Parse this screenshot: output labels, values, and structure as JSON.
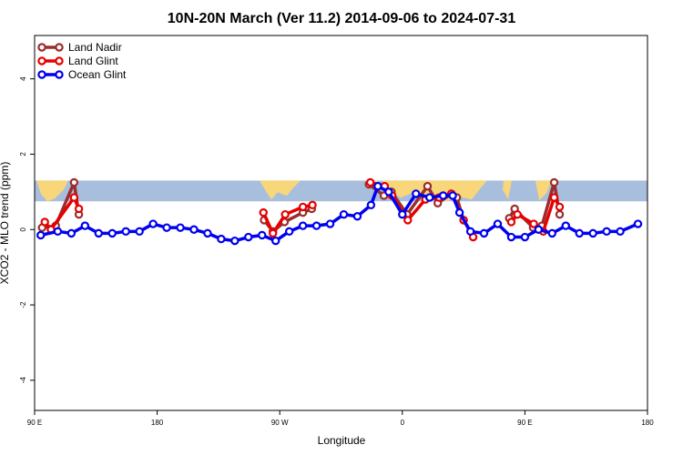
{
  "chart_data": {
    "type": "line",
    "title": "10N-20N March (Ver 11.2)   2014-09-06 to 2024-07-31",
    "xlabel": "Longitude",
    "ylabel": "XCO2 - MLO trend (ppm)",
    "ylim": [
      -4.8,
      5.15
    ],
    "y_ticks": [
      -4,
      -2,
      0,
      2,
      4
    ],
    "x_ticks": [
      {
        "pos": 0,
        "label": "90 E"
      },
      {
        "pos": 90,
        "label": "180"
      },
      {
        "pos": 180,
        "label": "90 W"
      },
      {
        "pos": 270,
        "label": "0"
      },
      {
        "pos": 360,
        "label": "90 E"
      },
      {
        "pos": 450,
        "label": "180"
      }
    ],
    "xlim": [
      0,
      450
    ],
    "map_band": {
      "ymin": 0.75,
      "ymax": 1.3,
      "ocean_color": "#a8bedd",
      "land_color": "#f7d77a"
    },
    "legend_position": "top-left",
    "series": [
      {
        "name": "Land Nadir",
        "color": "#9b2d2d",
        "segments": [
          [
            [
              5.5,
              0.05
            ],
            [
              15.5,
              0.1
            ],
            [
              29,
              1.25
            ],
            [
              32.5,
              0.4
            ]
          ],
          [
            [
              168.5,
              0.25
            ],
            [
              175,
              -0.05
            ],
            [
              183.5,
              0.2
            ],
            [
              197,
              0.45
            ],
            [
              203.5,
              0.55
            ]
          ],
          [
            [
              245.5,
              1.2
            ],
            [
              256.5,
              0.9
            ],
            [
              262,
              1.0
            ],
            [
              273.5,
              0.4
            ],
            [
              288.5,
              1.15
            ],
            [
              296,
              0.7
            ],
            [
              306,
              0.95
            ],
            [
              310,
              0.85
            ],
            [
              315,
              0.25
            ]
          ],
          [
            [
              348.5,
              0.3
            ],
            [
              352.5,
              0.55
            ],
            [
              366,
              0.05
            ],
            [
              372.5,
              0.1
            ],
            [
              381.5,
              1.25
            ],
            [
              385.5,
              0.4
            ]
          ]
        ]
      },
      {
        "name": "Land Glint",
        "color": "#e60000",
        "segments": [
          [
            [
              7.5,
              0.2
            ],
            [
              12,
              0.0
            ],
            [
              29,
              0.85
            ],
            [
              32.5,
              0.55
            ]
          ],
          [
            [
              168,
              0.45
            ],
            [
              175,
              -0.1
            ],
            [
              184,
              0.4
            ],
            [
              197,
              0.6
            ],
            [
              204,
              0.65
            ]
          ],
          [
            [
              246.5,
              1.25
            ],
            [
              257,
              1.15
            ],
            [
              262.5,
              0.9
            ],
            [
              274,
              0.25
            ],
            [
              287,
              0.8
            ],
            [
              297,
              0.85
            ],
            [
              306,
              0.95
            ],
            [
              315,
              0.25
            ],
            [
              322,
              -0.2
            ]
          ],
          [
            [
              350,
              0.2
            ],
            [
              354.5,
              0.4
            ],
            [
              366.5,
              0.15
            ],
            [
              373.5,
              -0.05
            ],
            [
              381.5,
              0.85
            ],
            [
              385.5,
              0.6
            ]
          ]
        ]
      },
      {
        "name": "Ocean Glint",
        "color": "#0000ee",
        "segments": [
          [
            [
              4.5,
              -0.15
            ],
            [
              17,
              -0.05
            ],
            [
              27,
              -0.1
            ],
            [
              37,
              0.1
            ],
            [
              47,
              -0.1
            ],
            [
              57,
              -0.1
            ],
            [
              67,
              -0.05
            ],
            [
              77,
              -0.05
            ],
            [
              87,
              0.15
            ],
            [
              97,
              0.05
            ],
            [
              107,
              0.05
            ],
            [
              117,
              0.0
            ],
            [
              127,
              -0.1
            ],
            [
              137,
              -0.25
            ],
            [
              147,
              -0.3
            ],
            [
              157,
              -0.2
            ],
            [
              167,
              -0.15
            ],
            [
              177,
              -0.3
            ],
            [
              187,
              -0.05
            ],
            [
              197,
              0.1
            ],
            [
              207,
              0.1
            ],
            [
              217,
              0.15
            ],
            [
              227,
              0.4
            ],
            [
              237,
              0.35
            ],
            [
              247,
              0.65
            ],
            [
              252,
              1.15
            ],
            [
              260,
              1.0
            ],
            [
              270,
              0.4
            ],
            [
              280,
              0.95
            ],
            [
              290,
              0.85
            ],
            [
              300,
              0.9
            ],
            [
              307,
              0.9
            ],
            [
              312,
              0.45
            ],
            [
              320,
              -0.05
            ],
            [
              330,
              -0.1
            ],
            [
              340,
              0.15
            ],
            [
              350,
              -0.2
            ],
            [
              360,
              -0.2
            ],
            [
              370,
              0.0
            ],
            [
              380,
              -0.1
            ],
            [
              390,
              0.1
            ],
            [
              400,
              -0.1
            ],
            [
              410,
              -0.1
            ],
            [
              420,
              -0.05
            ],
            [
              430,
              -0.05
            ],
            [
              443,
              0.15
            ]
          ]
        ]
      }
    ]
  }
}
